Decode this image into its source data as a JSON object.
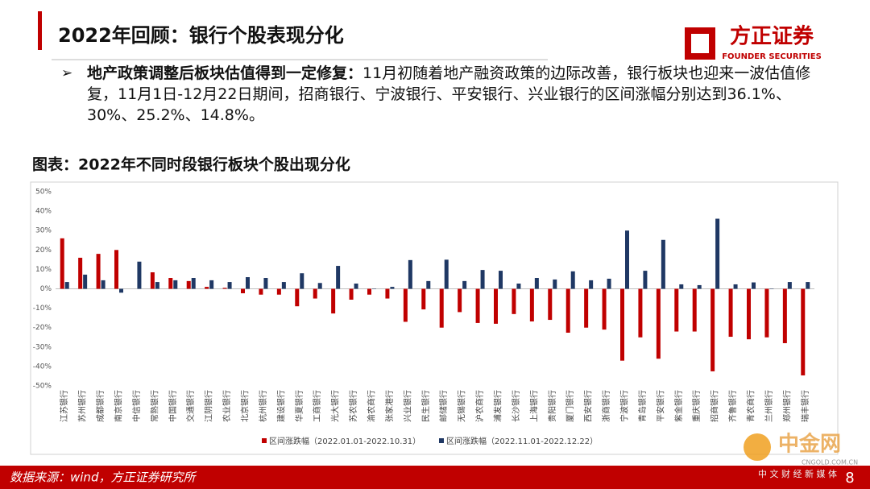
{
  "header": {
    "title": "2022年回顾：银行个股表现分化",
    "logo_name": "方正证券",
    "logo_english": "FOUNDER SECURITIES"
  },
  "bullet": {
    "bold": "地产政策调整后板块估值得到一定修复：",
    "text": "11月初随着地产融资政策的边际改善，银行板块也迎来一波估值修复，11月1日-12月22日期间，招商银行、宁波银行、平安银行、兴业银行的区间涨幅分别达到36.1%、30%、25.2%、14.8%。"
  },
  "chart_data": {
    "type": "bar",
    "title": "图表：2022年不同时段银行板块个股出现分化",
    "categories": [
      "江苏银行",
      "苏州银行",
      "成都银行",
      "南京银行",
      "中信银行",
      "常熟银行",
      "中国银行",
      "交通银行",
      "江阴银行",
      "农业银行",
      "北京银行",
      "杭州银行",
      "建设银行",
      "华夏银行",
      "工商银行",
      "光大银行",
      "苏农银行",
      "渝农商行",
      "张家港行",
      "兴业银行",
      "民生银行",
      "邮储银行",
      "无锡银行",
      "沪农商行",
      "浦发银行",
      "长沙银行",
      "上海银行",
      "贵阳银行",
      "厦门银行",
      "西安银行",
      "浙商银行",
      "宁波银行",
      "青岛银行",
      "平安银行",
      "紫金银行",
      "重庆银行",
      "招商银行",
      "齐鲁银行",
      "青农商行",
      "兰州银行",
      "郑州银行",
      "瑞丰银行"
    ],
    "series": [
      {
        "name": "区间涨跌幅（2022.01.01-2022.10.31）",
        "color": "#c00000",
        "values": [
          26,
          16,
          18,
          20,
          0,
          8.5,
          5.6,
          4,
          1,
          0.5,
          -2.3,
          -3,
          -3,
          -9,
          -5,
          -12.7,
          -5.6,
          -3,
          -5,
          -17,
          -10.6,
          -20,
          -12,
          -17.6,
          -18,
          -13,
          -16.8,
          -16,
          -22.6,
          -20,
          -21,
          -37,
          -25,
          -36,
          -22,
          -22,
          -42.5,
          -24.7,
          -26,
          -25,
          -28,
          -44.6
        ]
      },
      {
        "name": "区间涨跌幅（2022.11.01-2022.12.22）",
        "color": "#1f3864",
        "values": [
          3.5,
          7.3,
          4.4,
          -2,
          14,
          3.5,
          4.4,
          5.6,
          4.4,
          3.5,
          6,
          5.6,
          3.5,
          8,
          3,
          11.8,
          2.7,
          0.2,
          1,
          14.8,
          4,
          15,
          4,
          9.7,
          9.3,
          2.7,
          5.6,
          4.8,
          9,
          4.4,
          5.2,
          30,
          9.3,
          25.2,
          2.3,
          1.9,
          36.1,
          2.3,
          3.3,
          0.2,
          3.5,
          3.5
        ]
      }
    ],
    "ylim": [
      -50,
      50
    ],
    "yticks": [
      {
        "value": 50,
        "label": "50%"
      },
      {
        "value": 40,
        "label": "40%"
      },
      {
        "value": 30,
        "label": "30%"
      },
      {
        "value": 20,
        "label": "20%"
      },
      {
        "value": 10,
        "label": "10%"
      },
      {
        "value": 0,
        "label": "0%"
      },
      {
        "value": -10,
        "label": "-10%"
      },
      {
        "value": -20,
        "label": "-20%"
      },
      {
        "value": -30,
        "label": "-30%"
      },
      {
        "value": -40,
        "label": "-40%"
      },
      {
        "value": -50,
        "label": "-50%"
      }
    ],
    "grid": false
  },
  "footer": {
    "source": "数据来源：wind，方正证券研究所",
    "page": "8",
    "watermark": "中金网",
    "watermark_url": "CNGOLD.COM.CN",
    "watermark_tagline": "中 文 财 经 新 媒 体"
  }
}
